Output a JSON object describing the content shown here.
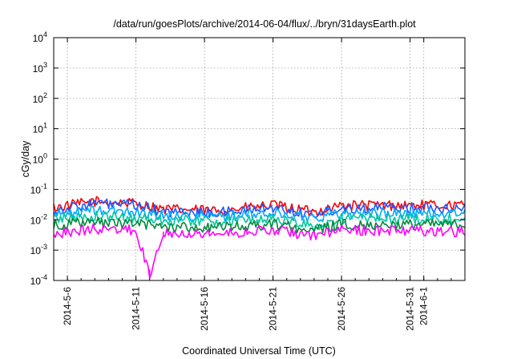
{
  "chart_data": {
    "type": "line",
    "title": "/data/run/goesPlots/archive/2014-06-04/flux/../bryn/31daysEarth.plot",
    "xlabel": "Coordinated Universal Time (UTC)",
    "ylabel": "cGy/day",
    "yscale": "log",
    "ylim": [
      0.0001,
      10000
    ],
    "y_ticks": [
      {
        "base": "10",
        "exp": "-4"
      },
      {
        "base": "10",
        "exp": "-3"
      },
      {
        "base": "10",
        "exp": "-2"
      },
      {
        "base": "10",
        "exp": "-1"
      },
      {
        "base": "10",
        "exp": "0"
      },
      {
        "base": "10",
        "exp": "1"
      },
      {
        "base": "10",
        "exp": "2"
      },
      {
        "base": "10",
        "exp": "3"
      },
      {
        "base": "10",
        "exp": "4"
      }
    ],
    "x_range": [
      "2014-05-05",
      "2014-06-04"
    ],
    "x_ticks": [
      "2014-5-6",
      "2014-5-11",
      "2014-5-16",
      "2014-5-21",
      "2014-5-26",
      "2014-5-31",
      "2014-6-1"
    ],
    "grid": true,
    "legend": "none",
    "series": [
      {
        "color": "#ff0000",
        "points": [
          [
            "2014-05-05",
            0.025
          ],
          [
            "2014-05-08",
            0.04
          ],
          [
            "2014-05-11",
            0.035
          ],
          [
            "2014-05-13",
            0.022
          ],
          [
            "2014-05-17",
            0.02
          ],
          [
            "2014-05-21",
            0.03
          ],
          [
            "2014-05-24",
            0.018
          ],
          [
            "2014-05-26",
            0.03
          ],
          [
            "2014-05-31",
            0.03
          ],
          [
            "2014-06-04",
            0.03
          ]
        ]
      },
      {
        "color": "#1e5aff",
        "points": [
          [
            "2014-05-05",
            0.02
          ],
          [
            "2014-05-08",
            0.035
          ],
          [
            "2014-05-11",
            0.03
          ],
          [
            "2014-05-13",
            0.018
          ],
          [
            "2014-05-17",
            0.017
          ],
          [
            "2014-05-21",
            0.025
          ],
          [
            "2014-05-24",
            0.015
          ],
          [
            "2014-05-26",
            0.025
          ],
          [
            "2014-05-31",
            0.025
          ],
          [
            "2014-06-04",
            0.025
          ]
        ]
      },
      {
        "color": "#00aaff",
        "points": [
          [
            "2014-05-05",
            0.015
          ],
          [
            "2014-05-08",
            0.02
          ],
          [
            "2014-05-11",
            0.018
          ],
          [
            "2014-05-13",
            0.014
          ],
          [
            "2014-05-17",
            0.013
          ],
          [
            "2014-05-21",
            0.016
          ],
          [
            "2014-05-24",
            0.012
          ],
          [
            "2014-05-26",
            0.016
          ],
          [
            "2014-05-31",
            0.016
          ],
          [
            "2014-06-04",
            0.016
          ]
        ]
      },
      {
        "color": "#00c8a0",
        "points": [
          [
            "2014-05-05",
            0.011
          ],
          [
            "2014-05-08",
            0.013
          ],
          [
            "2014-05-11",
            0.012
          ],
          [
            "2014-05-13",
            0.01
          ],
          [
            "2014-05-17",
            0.009
          ],
          [
            "2014-05-21",
            0.011
          ],
          [
            "2014-05-24",
            0.006
          ],
          [
            "2014-05-26",
            0.011
          ],
          [
            "2014-05-31",
            0.011
          ],
          [
            "2014-06-04",
            0.011
          ]
        ]
      },
      {
        "color": "#008a3c",
        "points": [
          [
            "2014-05-05",
            0.007
          ],
          [
            "2014-05-08",
            0.008
          ],
          [
            "2014-05-11",
            0.0075
          ],
          [
            "2014-05-13",
            0.006
          ],
          [
            "2014-05-17",
            0.0055
          ],
          [
            "2014-05-21",
            0.007
          ],
          [
            "2014-05-24",
            0.0045
          ],
          [
            "2014-05-26",
            0.007
          ],
          [
            "2014-05-31",
            0.007
          ],
          [
            "2014-06-04",
            0.007
          ]
        ]
      },
      {
        "color": "#ff00ff",
        "points": [
          [
            "2014-05-05",
            0.0035
          ],
          [
            "2014-05-08",
            0.005
          ],
          [
            "2014-05-11",
            0.0045
          ],
          [
            "2014-05-12",
            0.00015
          ],
          [
            "2014-05-13",
            0.004
          ],
          [
            "2014-05-17",
            0.0035
          ],
          [
            "2014-05-21",
            0.0045
          ],
          [
            "2014-05-24",
            0.003
          ],
          [
            "2014-05-26",
            0.0045
          ],
          [
            "2014-05-31",
            0.0045
          ],
          [
            "2014-06-04",
            0.004
          ]
        ]
      }
    ]
  }
}
